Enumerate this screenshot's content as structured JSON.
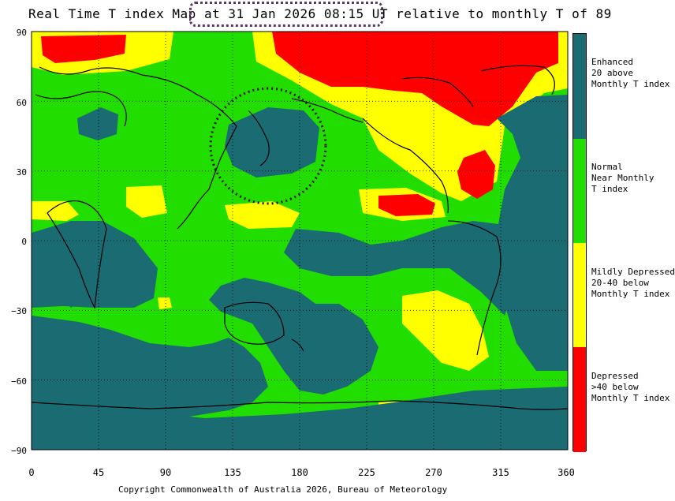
{
  "title": {
    "prefix": "Real Time T index Map",
    "datetime": "at 31 Jan 2026 08:15 UT",
    "suffix": "relative to monthly T of 89"
  },
  "y_axis_labels": [
    "90",
    "60",
    "30",
    "0",
    "−30",
    "−60",
    "−90"
  ],
  "x_axis_labels": [
    "0",
    "45",
    "90",
    "135",
    "180",
    "225",
    "270",
    "315",
    "360"
  ],
  "legend": [
    {
      "label": "Enhanced\n20 above\nMonthly T index",
      "color": "#1b6b73"
    },
    {
      "label": "Normal\nNear Monthly\nT index",
      "color": "#22dd00"
    },
    {
      "label": "Mildly Depressed\n20-40 below\nMonthly T index",
      "color": "#ffff00"
    },
    {
      "label": "Depressed\n>40 below\nMonthly T index",
      "color": "#ff0000"
    }
  ],
  "colors": {
    "enhanced": "#1b6b73",
    "normal": "#22dd00",
    "mildly_depressed": "#ffff00",
    "depressed": "#ff0000",
    "highlight": "#5b3a66"
  },
  "copyright": "Copyright Commonwealth of Australia 2026, Bureau of Meteorology"
}
